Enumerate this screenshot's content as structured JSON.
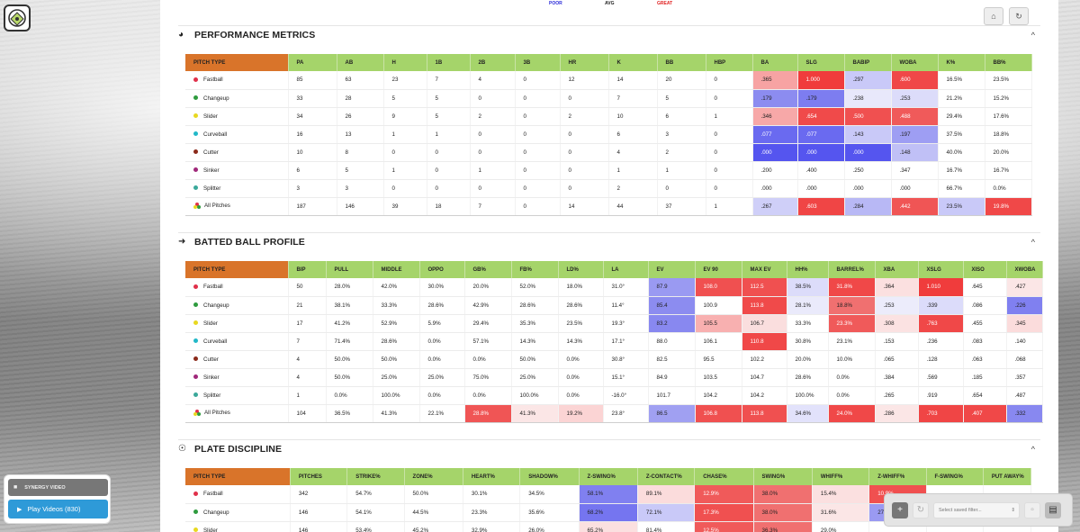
{
  "legend": {
    "poor": "POOR",
    "avg": "AVG",
    "great": "GREAT"
  },
  "colors": {
    "pitch_type_header": "#d9742a",
    "header": "#a5d46a",
    "poor": "#2a2ad8",
    "great": "#e02020",
    "play_button": "#2e9ad8"
  },
  "icons": {
    "logo": "baseball-diamond-icon",
    "home": "home-icon",
    "refresh": "refresh-icon",
    "perf": "speedometer-icon",
    "batted": "bat-icon",
    "discipline": "wifi-eye-icon",
    "collapse": "chevron-up-icon"
  },
  "sections": [
    {
      "id": "perf",
      "title": "PERFORMANCE METRICS",
      "head_top": 28,
      "table_top": 60,
      "columns": [
        "PITCH TYPE",
        "PA",
        "AB",
        "H",
        "1B",
        "2B",
        "3B",
        "HR",
        "K",
        "BB",
        "HBP",
        "BA",
        "SLG",
        "BABIP",
        "WOBA",
        "K%",
        "BB%"
      ],
      "widths": [
        114,
        54,
        52,
        48,
        48,
        50,
        50,
        54,
        54,
        54,
        52,
        50,
        52,
        52,
        52,
        52,
        52
      ],
      "rows": [
        {
          "pitch": "Fastball",
          "dot": "#e0304a",
          "cells": [
            "85",
            "63",
            "23",
            "7",
            "4",
            "0",
            "12",
            "14",
            "20",
            "0",
            ".365",
            "1.000",
            ".297",
            ".600",
            "16.5%",
            "23.5%"
          ],
          "heat": {
            "10": "#f7a3a3",
            "11": "#f03c3c",
            "12": "#c9c9f8",
            "13": "#f04848"
          }
        },
        {
          "pitch": "Changeup",
          "dot": "#2e9b3e",
          "cells": [
            "33",
            "28",
            "5",
            "5",
            "0",
            "0",
            "0",
            "7",
            "5",
            "0",
            ".179",
            ".179",
            ".238",
            ".253",
            "21.2%",
            "15.2%"
          ],
          "heat": {
            "10": "#8c8cf0",
            "11": "#7d7df0",
            "12": "#e8e8fb",
            "13": "#dcdcfa"
          }
        },
        {
          "pitch": "Slider",
          "dot": "#e8d820",
          "cells": [
            "34",
            "26",
            "9",
            "5",
            "2",
            "0",
            "2",
            "10",
            "6",
            "1",
            ".346",
            ".654",
            ".500",
            ".488",
            "29.4%",
            "17.6%"
          ],
          "heat": {
            "10": "#f7a8a8",
            "11": "#f04a4a",
            "12": "#f05050",
            "13": "#f05a5a"
          }
        },
        {
          "pitch": "Curveball",
          "dot": "#22b8c8",
          "cells": [
            "16",
            "13",
            "1",
            "1",
            "0",
            "0",
            "0",
            "6",
            "3",
            "0",
            ".077",
            ".077",
            ".143",
            ".197",
            "37.5%",
            "18.8%"
          ],
          "heat": {
            "10": "#6a6af0",
            "11": "#6a6af0",
            "12": "#c9c9f8",
            "13": "#9e9ef3"
          }
        },
        {
          "pitch": "Cutter",
          "dot": "#8b2a1a",
          "cells": [
            "10",
            "8",
            "0",
            "0",
            "0",
            "0",
            "0",
            "4",
            "2",
            "0",
            ".000",
            ".000",
            ".000",
            ".148",
            "40.0%",
            "20.0%"
          ],
          "heat": {
            "10": "#5555ef",
            "11": "#5555ef",
            "12": "#5555ef",
            "13": "#c0c0f6"
          }
        },
        {
          "pitch": "Sinker",
          "dot": "#a0287a",
          "cells": [
            "6",
            "5",
            "1",
            "0",
            "1",
            "0",
            "0",
            "1",
            "1",
            "0",
            ".200",
            ".400",
            ".250",
            ".347",
            "16.7%",
            "16.7%"
          ],
          "heat": {}
        },
        {
          "pitch": "Splitter",
          "dot": "#3aa89a",
          "cells": [
            "3",
            "3",
            "0",
            "0",
            "0",
            "0",
            "0",
            "2",
            "0",
            "0",
            ".000",
            ".000",
            ".000",
            ".000",
            "66.7%",
            "0.0%"
          ],
          "heat": {}
        },
        {
          "pitch": "All Pitches",
          "dot": "multi",
          "total": true,
          "cells": [
            "187",
            "146",
            "39",
            "18",
            "7",
            "0",
            "14",
            "44",
            "37",
            "1",
            ".267",
            ".603",
            ".284",
            ".442",
            "23.5%",
            "19.8%"
          ],
          "heat": {
            "10": "#cfcff8",
            "11": "#f04545",
            "12": "#b8b8f5",
            "13": "#f05555",
            "14": "#c9c9f8",
            "15": "#f04848"
          }
        }
      ]
    },
    {
      "id": "batted",
      "title": "BATTED BALL PROFILE",
      "head_top": 258,
      "table_top": 290,
      "columns": [
        "PITCH TYPE",
        "BIP",
        "PULL",
        "MIDDLE",
        "OPPO",
        "GB%",
        "FB%",
        "LD%",
        "LA",
        "EV",
        "EV 90",
        "MAX EV",
        "HH%",
        "BARREL%",
        "XBA",
        "XSLG",
        "XISO",
        "XWOBA"
      ],
      "widths": [
        114,
        42,
        52,
        52,
        50,
        52,
        52,
        50,
        50,
        52,
        52,
        50,
        46,
        52,
        48,
        50,
        48,
        40
      ],
      "rows": [
        {
          "pitch": "Fastball",
          "dot": "#e0304a",
          "cells": [
            "50",
            "28.0%",
            "42.0%",
            "30.0%",
            "20.0%",
            "52.0%",
            "18.0%",
            "31.0°",
            "87.9",
            "108.0",
            "112.5",
            "38.5%",
            "31.8%",
            ".364",
            "1.010",
            ".645",
            ".427"
          ],
          "heat": {
            "8": "#9a9af2",
            "9": "#f05050",
            "10": "#f05050",
            "11": "#dcdcfa",
            "12": "#f04848",
            "13": "#fbe0e0",
            "14": "#f03c3c",
            "16": "#fbe6e6"
          }
        },
        {
          "pitch": "Changeup",
          "dot": "#2e9b3e",
          "cells": [
            "21",
            "38.1%",
            "33.3%",
            "28.6%",
            "42.9%",
            "28.6%",
            "28.6%",
            "11.4°",
            "85.4",
            "100.9",
            "113.8",
            "28.1%",
            "18.8%",
            ".253",
            ".339",
            ".086",
            ".226"
          ],
          "heat": {
            "8": "#8c8cf0",
            "10": "#f04a4a",
            "11": "#eaeafb",
            "12": "#f07070",
            "13": "#ececfb",
            "14": "#dcdcfa",
            "16": "#8080f0"
          }
        },
        {
          "pitch": "Slider",
          "dot": "#e8d820",
          "cells": [
            "17",
            "41.2%",
            "52.9%",
            "5.9%",
            "29.4%",
            "35.3%",
            "23.5%",
            "19.3°",
            "83.2",
            "105.5",
            "106.7",
            "33.3%",
            "23.3%",
            ".308",
            ".763",
            ".455",
            ".345"
          ],
          "heat": {
            "8": "#8888f0",
            "9": "#f8b0b0",
            "10": "#fadede",
            "12": "#f05a5a",
            "13": "#fbe2e2",
            "14": "#f04848",
            "16": "#fbdcdc"
          }
        },
        {
          "pitch": "Curveball",
          "dot": "#22b8c8",
          "cells": [
            "7",
            "71.4%",
            "28.6%",
            "0.0%",
            "57.1%",
            "14.3%",
            "14.3%",
            "17.1°",
            "88.0",
            "106.1",
            "110.8",
            "30.8%",
            "23.1%",
            ".153",
            ".236",
            ".083",
            ".140"
          ],
          "heat": {
            "10": "#f04848"
          }
        },
        {
          "pitch": "Cutter",
          "dot": "#8b2a1a",
          "cells": [
            "4",
            "50.0%",
            "50.0%",
            "0.0%",
            "0.0%",
            "50.0%",
            "0.0%",
            "30.8°",
            "82.5",
            "95.5",
            "102.2",
            "20.0%",
            "10.0%",
            ".065",
            ".128",
            ".063",
            ".068"
          ],
          "heat": {}
        },
        {
          "pitch": "Sinker",
          "dot": "#a0287a",
          "cells": [
            "4",
            "50.0%",
            "25.0%",
            "25.0%",
            "75.0%",
            "25.0%",
            "0.0%",
            "15.1°",
            "84.9",
            "103.5",
            "104.7",
            "28.6%",
            "0.0%",
            ".384",
            ".569",
            ".185",
            ".357"
          ],
          "heat": {}
        },
        {
          "pitch": "Splitter",
          "dot": "#3aa89a",
          "cells": [
            "1",
            "0.0%",
            "100.0%",
            "0.0%",
            "0.0%",
            "100.0%",
            "0.0%",
            "-16.0°",
            "101.7",
            "104.2",
            "104.2",
            "100.0%",
            "0.0%",
            ".265",
            ".919",
            ".654",
            ".487"
          ],
          "heat": {}
        },
        {
          "pitch": "All Pitches",
          "dot": "multi",
          "total": true,
          "cells": [
            "104",
            "36.5%",
            "41.3%",
            "22.1%",
            "28.8%",
            "41.3%",
            "19.2%",
            "23.8°",
            "86.5",
            "106.8",
            "113.8",
            "34.6%",
            "24.0%",
            ".286",
            ".703",
            ".407",
            ".332"
          ],
          "heat": {
            "4": "#f05555",
            "5": "#fbe6e6",
            "6": "#fbd4d4",
            "8": "#a0a0f2",
            "9": "#f05050",
            "10": "#f05050",
            "11": "#e2e2fb",
            "12": "#f04848",
            "13": "#fbe6e6",
            "14": "#f04545",
            "15": "#f04848",
            "16": "#8888f0"
          }
        }
      ]
    },
    {
      "id": "discipline",
      "title": "PLATE DISCIPLINE",
      "head_top": 488,
      "table_top": 520,
      "columns": [
        "PITCH TYPE",
        "PITCHES",
        "STRIKE%",
        "ZONE%",
        "HEART%",
        "SHADOW%",
        "Z-SWING%",
        "Z-CONTACT%",
        "CHASE%",
        "SWING%",
        "WHIFF%",
        "Z-WHIFF%",
        "F-SWING%",
        "PUT AWAY%"
      ],
      "widths": [
        114,
        62,
        62,
        64,
        62,
        64,
        64,
        62,
        64,
        64,
        62,
        62,
        62,
        52
      ],
      "rows": [
        {
          "pitch": "Fastball",
          "dot": "#e0304a",
          "cells": [
            "342",
            "54.7%",
            "50.0%",
            "30.1%",
            "34.5%",
            "58.1%",
            "89.1%",
            "12.9%",
            "38.0%",
            "15.4%",
            "10.9%",
            "",
            ""
          ],
          "heat": {
            "5": "#8080f0",
            "6": "#fbdcdc",
            "7": "#f05a5a",
            "8": "#f07070",
            "9": "#fbe0e0",
            "10": "#f05050"
          }
        },
        {
          "pitch": "Changeup",
          "dot": "#2e9b3e",
          "cells": [
            "146",
            "54.1%",
            "44.5%",
            "23.3%",
            "35.6%",
            "68.2%",
            "72.1%",
            "17.3%",
            "38.0%",
            "31.6%",
            "27.9%",
            "",
            ""
          ],
          "heat": {
            "5": "#7575f0",
            "6": "#c9c9f8",
            "7": "#f05050",
            "8": "#f07070",
            "9": "#fbe6e6",
            "10": "#9a9af2"
          }
        },
        {
          "pitch": "Slider",
          "dot": "#e8d820",
          "cells": [
            "146",
            "53.4%",
            "45.2%",
            "32.9%",
            "26.0%",
            "65.2%",
            "81.4%",
            "12.5%",
            "36.3%",
            "29.0%",
            "",
            "",
            ""
          ],
          "heat": {
            "5": "#fbe0e0",
            "7": "#f05a5a",
            "8": "#f07070"
          }
        }
      ]
    }
  ],
  "left_panel": {
    "synergy_label": "SYNERGY VIDEO",
    "play_label": "Play Videos (830)"
  },
  "filter": {
    "placeholder": "Select saved filter..."
  }
}
